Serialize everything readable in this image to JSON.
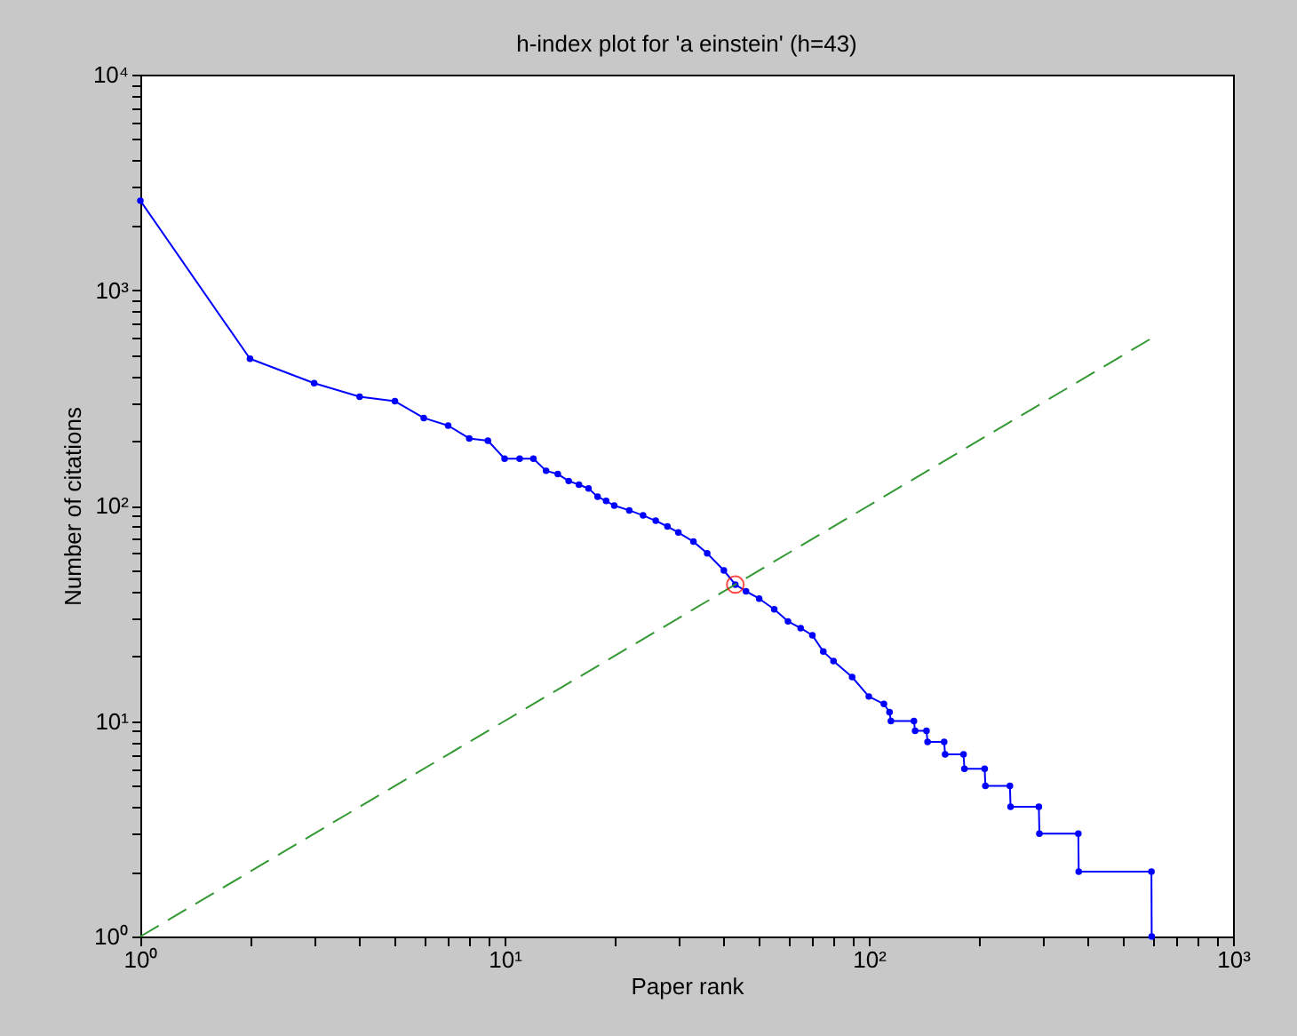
{
  "chart_data": {
    "type": "line",
    "title": "h-index plot for 'a einstein' (h=43)",
    "xlabel": "Paper rank",
    "ylabel": "Number of citations",
    "log": "xy",
    "grid": false,
    "xlim": [
      1,
      1000
    ],
    "ylim": [
      1,
      10000
    ],
    "xticks": [
      {
        "value": 1,
        "label": "10⁰"
      },
      {
        "value": 2,
        "label": null
      },
      {
        "value": 3,
        "label": null
      },
      {
        "value": 4,
        "label": null
      },
      {
        "value": 5,
        "label": null
      },
      {
        "value": 6,
        "label": null
      },
      {
        "value": 7,
        "label": null
      },
      {
        "value": 8,
        "label": null
      },
      {
        "value": 9,
        "label": null
      },
      {
        "value": 10,
        "label": "10¹"
      },
      {
        "value": 20,
        "label": null
      },
      {
        "value": 30,
        "label": null
      },
      {
        "value": 40,
        "label": null
      },
      {
        "value": 50,
        "label": null
      },
      {
        "value": 60,
        "label": null
      },
      {
        "value": 70,
        "label": null
      },
      {
        "value": 80,
        "label": null
      },
      {
        "value": 90,
        "label": null
      },
      {
        "value": 100,
        "label": "10²"
      },
      {
        "value": 200,
        "label": null
      },
      {
        "value": 300,
        "label": null
      },
      {
        "value": 400,
        "label": null
      },
      {
        "value": 500,
        "label": null
      },
      {
        "value": 600,
        "label": null
      },
      {
        "value": 700,
        "label": null
      },
      {
        "value": 800,
        "label": null
      },
      {
        "value": 900,
        "label": null
      },
      {
        "value": 1000,
        "label": "10³"
      }
    ],
    "yticks": [
      {
        "value": 1,
        "label": "10⁰"
      },
      {
        "value": 2,
        "label": null
      },
      {
        "value": 3,
        "label": null
      },
      {
        "value": 4,
        "label": null
      },
      {
        "value": 5,
        "label": null
      },
      {
        "value": 6,
        "label": null
      },
      {
        "value": 7,
        "label": null
      },
      {
        "value": 8,
        "label": null
      },
      {
        "value": 9,
        "label": null
      },
      {
        "value": 10,
        "label": "10¹"
      },
      {
        "value": 20,
        "label": null
      },
      {
        "value": 30,
        "label": null
      },
      {
        "value": 40,
        "label": null
      },
      {
        "value": 50,
        "label": null
      },
      {
        "value": 60,
        "label": null
      },
      {
        "value": 70,
        "label": null
      },
      {
        "value": 80,
        "label": null
      },
      {
        "value": 90,
        "label": null
      },
      {
        "value": 100,
        "label": "10²"
      },
      {
        "value": 200,
        "label": null
      },
      {
        "value": 300,
        "label": null
      },
      {
        "value": 400,
        "label": null
      },
      {
        "value": 500,
        "label": null
      },
      {
        "value": 600,
        "label": null
      },
      {
        "value": 700,
        "label": null
      },
      {
        "value": 800,
        "label": null
      },
      {
        "value": 900,
        "label": null
      },
      {
        "value": 1000,
        "label": "10³"
      },
      {
        "value": 2000,
        "label": null
      },
      {
        "value": 3000,
        "label": null
      },
      {
        "value": 4000,
        "label": null
      },
      {
        "value": 5000,
        "label": null
      },
      {
        "value": 6000,
        "label": null
      },
      {
        "value": 7000,
        "label": null
      },
      {
        "value": 8000,
        "label": null
      },
      {
        "value": 9000,
        "label": null
      },
      {
        "value": 10000,
        "label": "10⁴"
      }
    ],
    "series": [
      {
        "color": "#0000ff",
        "marker": "circle",
        "line_style": "solid",
        "x": [
          1,
          2,
          3,
          4,
          5,
          6,
          7,
          8,
          9,
          10,
          11,
          12,
          13,
          14,
          15,
          16,
          17,
          18,
          19,
          20,
          22,
          24,
          26,
          28,
          30,
          33,
          36,
          40,
          43,
          46,
          50,
          55,
          60,
          65,
          70,
          75,
          80,
          90,
          100,
          110,
          114,
          115,
          133,
          134,
          144,
          145,
          161,
          162,
          182,
          183,
          208,
          209,
          244,
          245,
          293,
          294,
          376,
          377,
          597,
          598
        ],
        "values": [
          2600,
          480,
          370,
          320,
          305,
          255,
          235,
          205,
          200,
          165,
          165,
          165,
          145,
          140,
          130,
          125,
          120,
          110,
          105,
          100,
          95,
          90,
          85,
          80,
          75,
          68,
          60,
          50,
          43,
          40,
          37,
          33,
          29,
          27,
          25,
          21,
          19,
          16,
          13,
          12,
          11,
          10,
          10,
          9,
          9,
          8,
          8,
          7,
          7,
          6,
          6,
          5,
          5,
          4,
          4,
          3,
          3,
          2,
          2,
          1
        ]
      },
      {
        "type": "line",
        "color": "#339933",
        "marker": "none",
        "line_style": "dashed",
        "x": [
          1,
          600
        ],
        "values": [
          1,
          600
        ]
      },
      {
        "type": "scatter",
        "color": "#ff0000",
        "marker": "circle",
        "x": [
          43
        ],
        "values": [
          43
        ]
      }
    ]
  }
}
